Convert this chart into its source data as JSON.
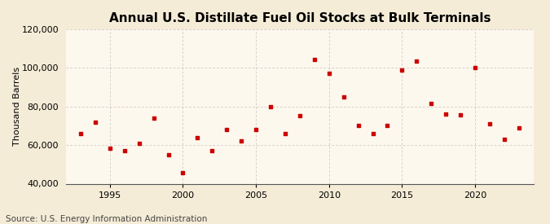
{
  "title": "Annual U.S. Distillate Fuel Oil Stocks at Bulk Terminals",
  "ylabel": "Thousand Barrels",
  "source": "Source: U.S. Energy Information Administration",
  "background_color": "#f5ecd7",
  "plot_bg_color": "#fdf8ee",
  "marker_color": "#cc0000",
  "years": [
    1993,
    1994,
    1995,
    1996,
    1997,
    1998,
    1999,
    2000,
    2001,
    2002,
    2003,
    2004,
    2005,
    2006,
    2007,
    2008,
    2009,
    2010,
    2011,
    2012,
    2013,
    2014,
    2015,
    2016,
    2017,
    2018,
    2019,
    2020,
    2021,
    2022,
    2023
  ],
  "values": [
    66000,
    72000,
    58500,
    57000,
    61000,
    74000,
    55000,
    45500,
    64000,
    57000,
    68000,
    62000,
    68000,
    80000,
    66000,
    75000,
    104500,
    97000,
    85000,
    70000,
    66000,
    70000,
    99000,
    103500,
    81500,
    76000,
    75500,
    100000,
    71000,
    63000,
    69000
  ],
  "xlim": [
    1992,
    2024
  ],
  "ylim": [
    40000,
    120000
  ],
  "yticks": [
    40000,
    60000,
    80000,
    100000,
    120000
  ],
  "xticks": [
    1995,
    2000,
    2005,
    2010,
    2015,
    2020
  ],
  "grid_color": "#aaaaaa",
  "title_fontsize": 11,
  "label_fontsize": 8,
  "tick_fontsize": 8,
  "source_fontsize": 7.5
}
